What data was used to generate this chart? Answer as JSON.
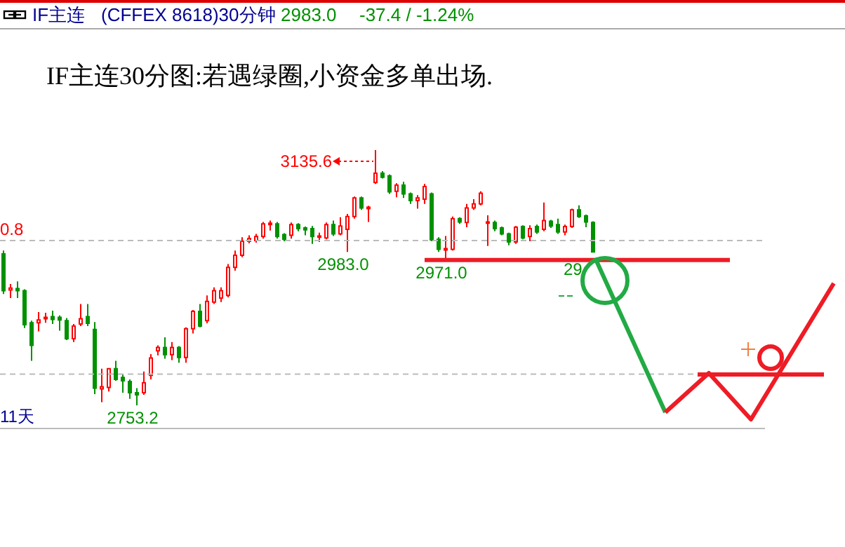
{
  "chart_data": {
    "type": "candlestick",
    "title": "IF主连30分图:若遇绿圈,小资金多单出场.",
    "subtitle": "IF主连 (CFFEX 8618)30分钟",
    "colors": [
      "#009100",
      "#ff0000",
      "#009100",
      "#009100",
      "#009100",
      "#ff0000",
      "#ff0000",
      "#009100",
      "#009100",
      "#009100",
      "#ff0000",
      "#ff0000",
      "#009100",
      "#009100",
      "#ff0000",
      "#ff0000",
      "#009100",
      "#009100",
      "#009100",
      "#009100",
      "#ff0000",
      "#ff0000",
      "#ff0000",
      "#009100",
      "#ff0000",
      "#009100",
      "#ff0000",
      "#ff0000",
      "#009100",
      "#ff0000",
      "#ff0000",
      "#ff0000",
      "#ff0000",
      "#ff0000",
      "#ff0000",
      "#ff0000",
      "#ff0000",
      "#ff0000",
      "#ff0000",
      "#009100",
      "#009100",
      "#ff0000",
      "#009100",
      "#009100",
      "#009100",
      "#ff0000",
      "#ff0000",
      "#009100",
      "#ff0000",
      "#ff0000",
      "#ff0000",
      "#009100",
      "#ff0000",
      "#ff0000",
      "#009100",
      "#009100",
      "#ff0000",
      "#009100",
      "#009100",
      "#ff0000",
      "#ff0000",
      "#009100",
      "#009100",
      "#ff0000",
      "#ff0000",
      "#009100",
      "#ff0000",
      "#ff0000",
      "#ff0000",
      "#ff0000",
      "#009100",
      "#009100",
      "#009100",
      "#ff0000",
      "#009100",
      "#ff0000",
      "#009100",
      "#ff0000",
      "#009100",
      "#009100",
      "#ff0000",
      "#ff0000",
      "#009100",
      "#009100",
      "#009100"
    ],
    "categories": [
      null,
      null,
      null,
      null,
      null,
      null,
      null,
      null,
      null,
      null,
      null,
      null,
      null,
      null,
      null,
      null,
      null,
      null,
      null,
      null,
      null,
      null,
      null,
      null,
      null,
      null,
      null,
      null,
      null,
      null,
      null,
      null,
      null,
      null,
      null,
      null,
      null,
      null,
      null,
      null,
      null,
      null,
      null,
      null,
      null,
      null,
      null,
      null,
      null,
      null,
      null,
      null,
      null,
      null,
      null,
      null,
      null,
      null,
      null,
      null,
      null,
      null,
      null,
      null,
      null,
      null,
      null,
      null,
      null,
      null,
      null,
      null,
      null,
      null,
      null,
      null,
      null,
      null,
      null,
      null,
      null,
      null,
      null,
      null,
      null
    ],
    "ohlc": [
      [
        2980,
        2985,
        2920,
        2925
      ],
      [
        2926,
        2935,
        2914,
        2929
      ],
      [
        2928,
        2939,
        2914,
        2925
      ],
      [
        2925,
        2927,
        2869,
        2874
      ],
      [
        2877,
        2880,
        2820,
        2843
      ],
      [
        2877,
        2893,
        2864,
        2881
      ],
      [
        2883,
        2892,
        2877,
        2885
      ],
      [
        2886,
        2895,
        2875,
        2882
      ],
      [
        2885,
        2888,
        2865,
        2881
      ],
      [
        2880,
        2884,
        2851,
        2853
      ],
      [
        2853,
        2875,
        2848,
        2872
      ],
      [
        2875,
        2905,
        2872,
        2883
      ],
      [
        2886,
        2905,
        2872,
        2876
      ],
      [
        2867,
        2878,
        2770,
        2779
      ],
      [
        2778,
        2808,
        2758,
        2781
      ],
      [
        2780,
        2809,
        2774,
        2808
      ],
      [
        2808,
        2820,
        2790,
        2792
      ],
      [
        2795,
        2800,
        2772,
        2790
      ],
      [
        2789,
        2792,
        2763,
        2772
      ],
      [
        2772,
        2779,
        2753.2,
        2769
      ],
      [
        2772,
        2804,
        2769,
        2787
      ],
      [
        2798,
        2830,
        2792,
        2824
      ],
      [
        2835,
        2843,
        2828,
        2840
      ],
      [
        2840,
        2855,
        2823,
        2829
      ],
      [
        2829,
        2848,
        2821,
        2840
      ],
      [
        2840,
        2842,
        2817,
        2825
      ],
      [
        2825,
        2870,
        2817,
        2868
      ],
      [
        2868,
        2896,
        2861,
        2894
      ],
      [
        2894,
        2905,
        2870,
        2872
      ],
      [
        2880,
        2918,
        2876,
        2909
      ],
      [
        2908,
        2930,
        2905,
        2925
      ],
      [
        2914,
        2930,
        2908,
        2925
      ],
      [
        2918,
        2965,
        2915,
        2960
      ],
      [
        2960,
        2985,
        2955,
        2978
      ],
      [
        2978,
        3005,
        2975,
        2999
      ],
      [
        2999,
        3008,
        2996,
        3003
      ],
      [
        3000,
        3010,
        2997,
        3006
      ],
      [
        3006,
        3028,
        3003,
        3025
      ],
      [
        3024,
        3030,
        3015,
        3026
      ],
      [
        3025,
        3028,
        3003,
        3006
      ],
      [
        3009,
        3011,
        2999,
        3002
      ],
      [
        3008,
        3027,
        3003,
        3024
      ],
      [
        3024,
        3026,
        3014,
        3018
      ],
      [
        3019,
        3021,
        3008,
        3016
      ],
      [
        3018,
        3022,
        2995,
        3006
      ],
      [
        3005,
        3012,
        2998,
        3007
      ],
      [
        3004,
        3027,
        3002,
        3024
      ],
      [
        3024,
        3030,
        3007,
        3010
      ],
      [
        3010,
        3035,
        3008,
        3022
      ],
      [
        3017,
        3040,
        2983.0,
        3036
      ],
      [
        3036,
        3066,
        3033,
        3064
      ],
      [
        3064,
        3066,
        3046,
        3049
      ],
      [
        3048,
        3052,
        3028,
        3050
      ],
      [
        3087,
        3135.6,
        3085,
        3101
      ],
      [
        3101,
        3104,
        3093,
        3095
      ],
      [
        3097,
        3099,
        3070,
        3073
      ],
      [
        3074,
        3086,
        3065,
        3083
      ],
      [
        3083,
        3088,
        3064,
        3070
      ],
      [
        3070,
        3072,
        3055,
        3060
      ],
      [
        3060,
        3068,
        3048,
        3064
      ],
      [
        3062,
        3085,
        3055,
        3081
      ],
      [
        3070,
        3072,
        2999,
        3001
      ],
      [
        3002,
        3005,
        2983,
        2987
      ],
      [
        2986,
        3007,
        2971.0,
        2988
      ],
      [
        2987,
        3036,
        2985,
        3033
      ],
      [
        3033,
        3035,
        3025,
        3028
      ],
      [
        3027,
        3055,
        3020,
        3049
      ],
      [
        3049,
        3062,
        3046,
        3055
      ],
      [
        3055,
        3074,
        3053,
        3071
      ],
      [
        3026,
        3038,
        2992,
        3028
      ],
      [
        3027,
        3030,
        3014,
        3018
      ],
      [
        3019,
        3021,
        3008,
        3010
      ],
      [
        3010,
        3012,
        2993,
        2998
      ],
      [
        2998,
        3022,
        2995,
        3020
      ],
      [
        3021,
        3023,
        3002,
        3004
      ],
      [
        3006,
        3023,
        2999,
        3018
      ],
      [
        3021,
        3024,
        3010,
        3013
      ],
      [
        3017,
        3057,
        3014,
        3030
      ],
      [
        3029,
        3031,
        3019,
        3022
      ],
      [
        3024,
        3033,
        3010,
        3013
      ],
      [
        3013,
        3024,
        3008,
        3021
      ],
      [
        3021,
        3048,
        3019,
        3046
      ],
      [
        3046,
        3053,
        3034,
        3036
      ],
      [
        3037,
        3039,
        3020,
        3028
      ],
      [
        3027,
        3029,
        2982.0,
        2983.0
      ]
    ],
    "tick_labels": false,
    "ref_lines": [
      {
        "axis": "y",
        "value": 3000,
        "line_style": "dashed",
        "color": "#bbbbbb"
      },
      {
        "axis": "y",
        "value": 2800,
        "line_style": "dashed",
        "color": "#bbbbbb"
      },
      {
        "axis": "y",
        "value": 2971.0,
        "line_style": "solid",
        "color": "#ee1c25"
      }
    ],
    "annotations": [
      "2983.0",
      "-37.4 / -1.24%",
      "11天",
      "3135.6",
      "0.8",
      {
        "text": "2983.0",
        "y": 2983.0
      },
      {
        "text": "2971.0",
        "y": 2971.0
      },
      {
        "text": "29",
        "y": 2982.0
      },
      {
        "text": "2753.2",
        "y": 2753.2
      }
    ]
  }
}
